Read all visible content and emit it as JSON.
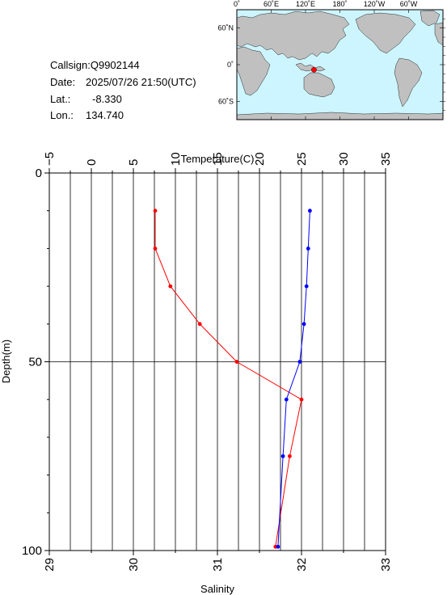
{
  "info": {
    "callsign_label": "Callsign:",
    "callsign": "Q9902144",
    "date_label": "Date:",
    "date": "2025/07/26 21:50(UTC)",
    "lat_label": "Lat.:",
    "lat": "-8.330",
    "lon_label": "Lon.:",
    "lon": "134.740"
  },
  "map": {
    "top_ticks": [
      "0˚",
      "60˚E",
      "120˚E",
      "180˚",
      "120˚W",
      "60˚W"
    ],
    "left_ticks": [
      "60˚N",
      "0˚",
      "60˚S"
    ],
    "ocean_color": "#ccf5ff",
    "land_color": "#c0c0c0",
    "marker_color": "#ff0000",
    "station_lon": 134.74,
    "station_lat": -8.33
  },
  "chart_data": {
    "type": "line",
    "ylabel": "Depth(m)",
    "ylim": [
      0,
      100
    ],
    "yticks": [
      "0",
      "50",
      "100"
    ],
    "x_top": {
      "label": "Temperature(C)",
      "lim": [
        -5,
        35
      ],
      "ticks": [
        "−5",
        "0",
        "5",
        "10",
        "15",
        "20",
        "25",
        "30",
        "35"
      ]
    },
    "x_bottom": {
      "label": "Salinity",
      "lim": [
        29,
        33
      ],
      "ticks": [
        "29",
        "30",
        "31",
        "32",
        "33"
      ]
    },
    "grid": true,
    "series": [
      {
        "axis": "top",
        "color": "#ff0000",
        "points": [
          {
            "x": 7.6,
            "y": 10
          },
          {
            "x": 7.6,
            "y": 20
          },
          {
            "x": 9.4,
            "y": 30
          },
          {
            "x": 12.9,
            "y": 40
          },
          {
            "x": 17.3,
            "y": 50
          },
          {
            "x": 25.0,
            "y": 60
          },
          {
            "x": 23.6,
            "y": 75
          },
          {
            "x": 21.9,
            "y": 99
          }
        ]
      },
      {
        "axis": "bottom",
        "color": "#0000ff",
        "points": [
          {
            "x": 32.1,
            "y": 10
          },
          {
            "x": 32.08,
            "y": 20
          },
          {
            "x": 32.06,
            "y": 30
          },
          {
            "x": 32.03,
            "y": 40
          },
          {
            "x": 31.98,
            "y": 50
          },
          {
            "x": 31.82,
            "y": 60
          },
          {
            "x": 31.78,
            "y": 75
          },
          {
            "x": 31.72,
            "y": 99
          }
        ]
      }
    ]
  }
}
